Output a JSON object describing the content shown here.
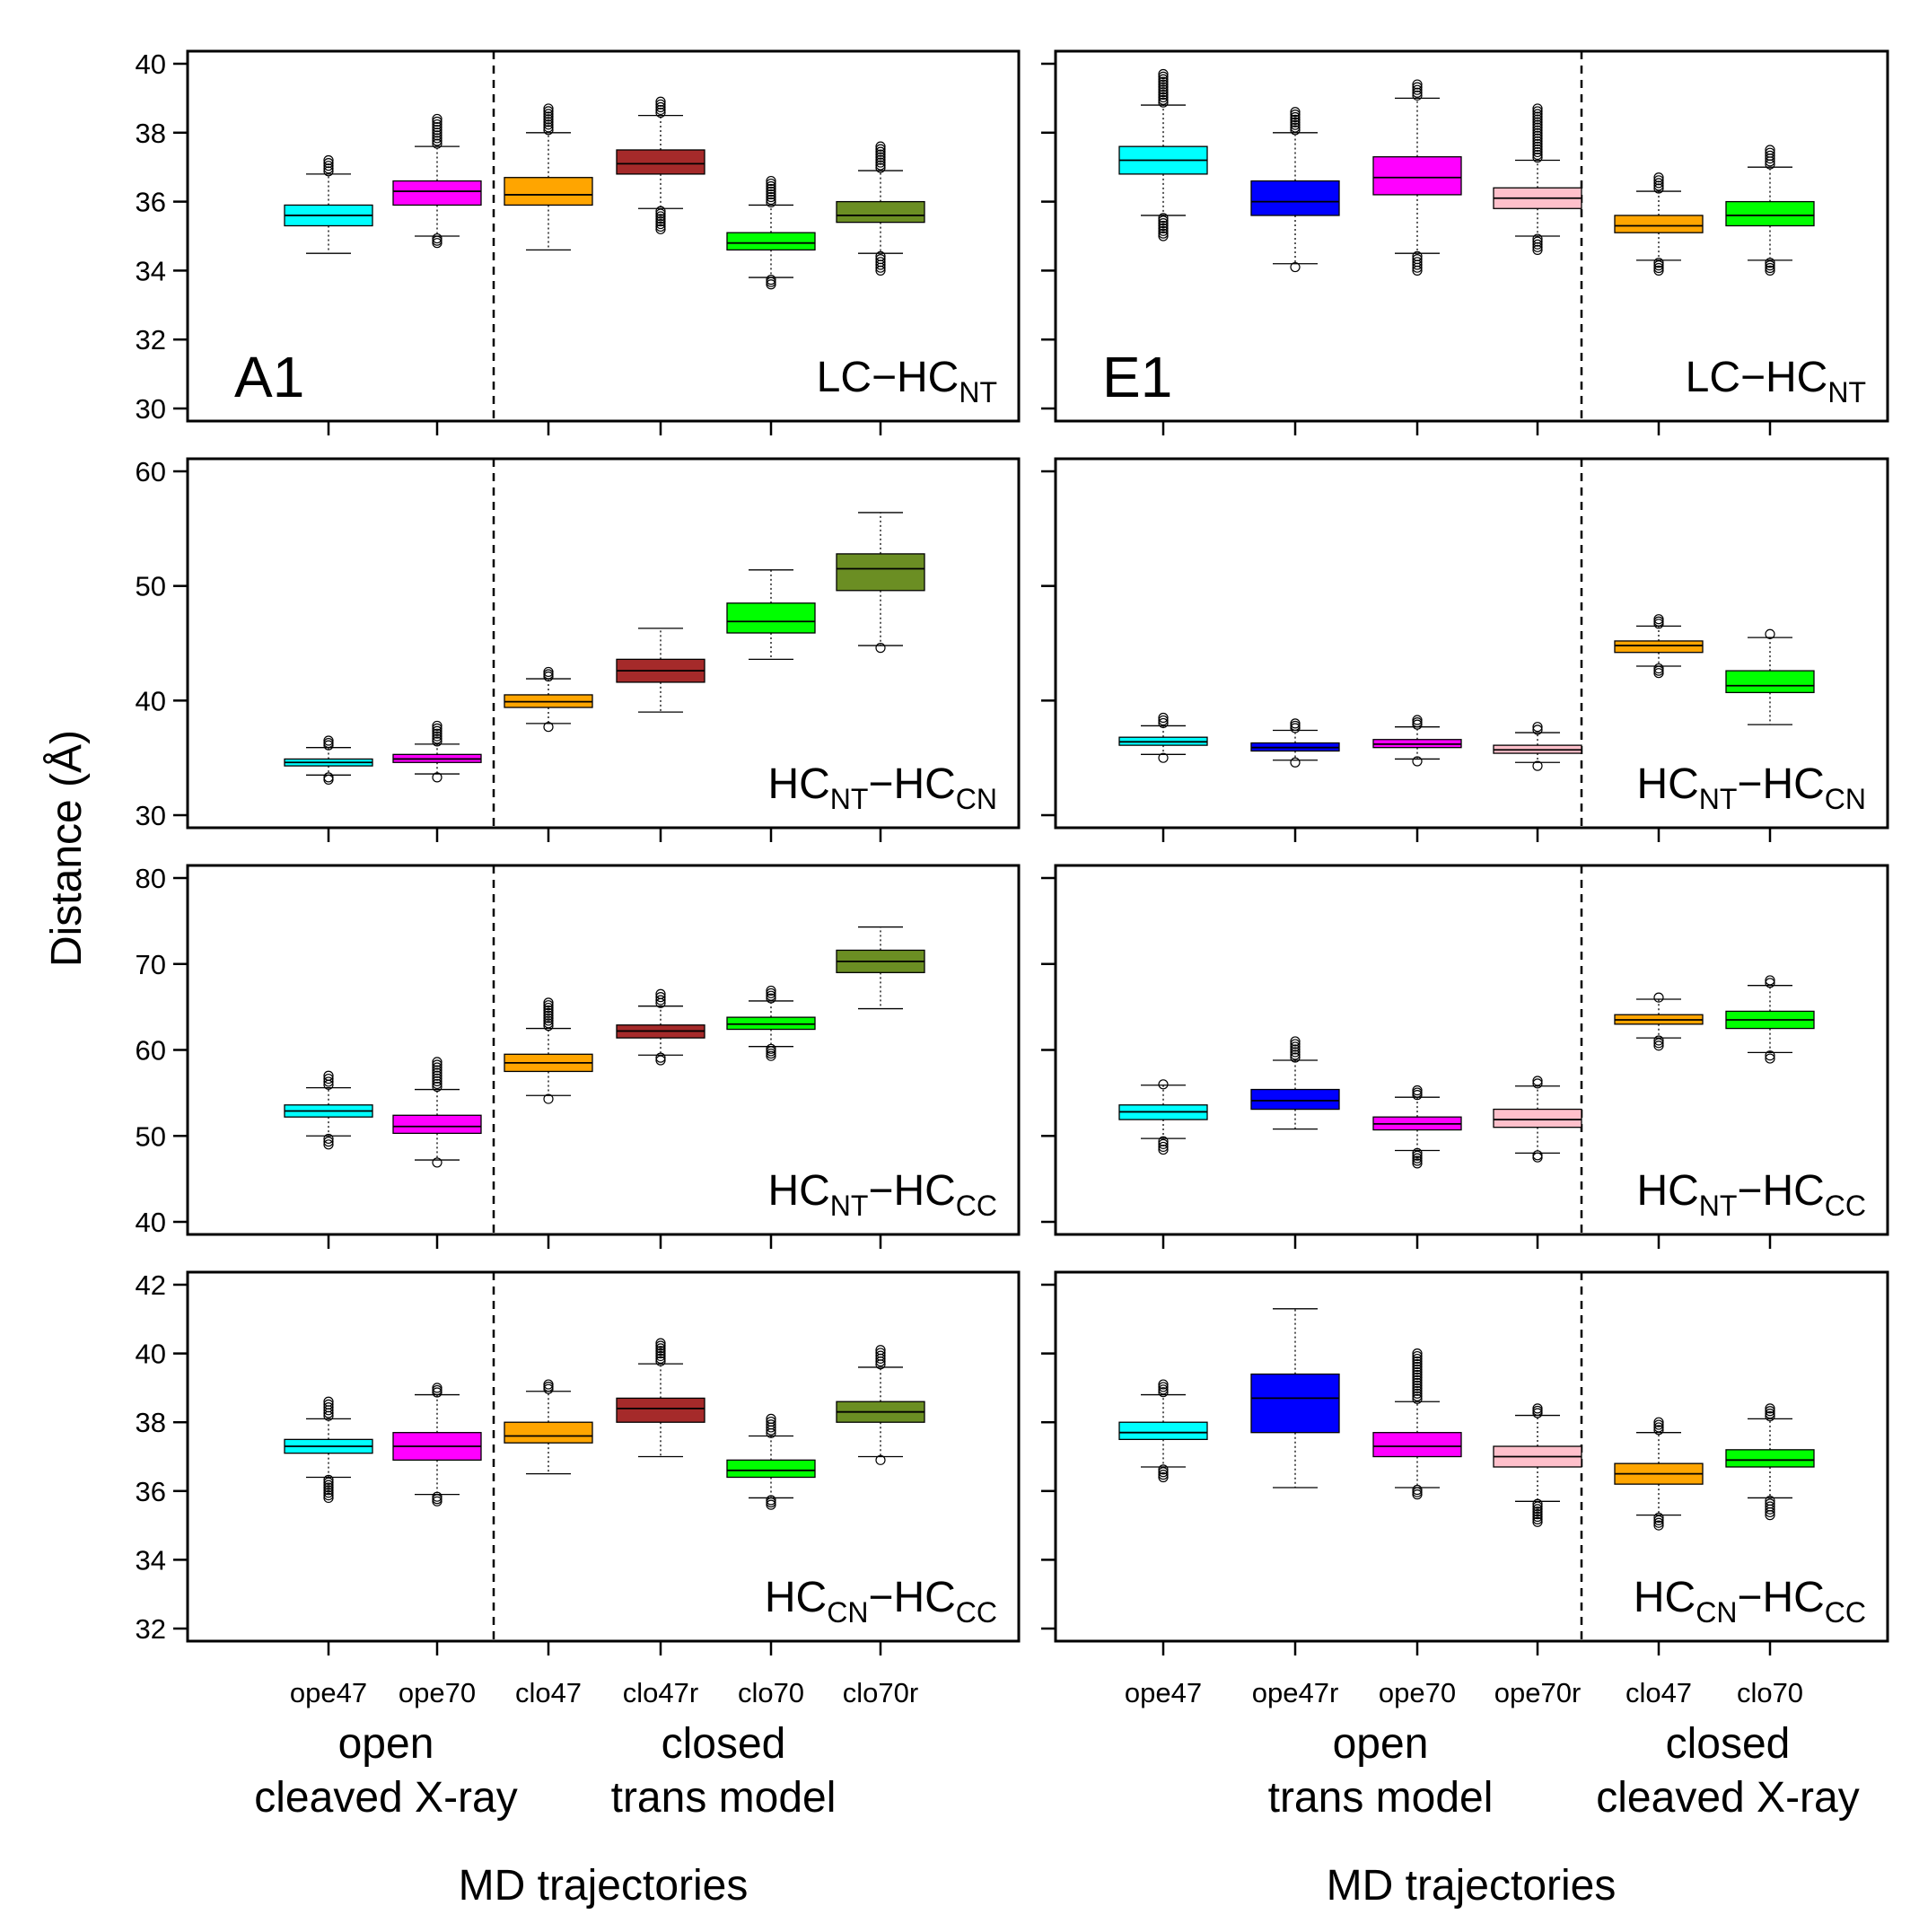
{
  "chart_data": {
    "type": "boxplot",
    "ylabel": "Distance (Å)",
    "left": {
      "panel_letter": "A1",
      "categories": [
        "ope47",
        "ope70",
        "clo47",
        "clo47r",
        "clo70",
        "clo70r"
      ],
      "groups": [
        {
          "title": "open",
          "subtitle": "cleaved X-ray"
        },
        {
          "title": "closed",
          "subtitle": "trans model"
        }
      ],
      "xlabel": "MD trajectories",
      "colors": [
        "#00ffff",
        "#ff00ff",
        "#ffa500",
        "#a52a2a",
        "#00ff00",
        "#6b8e23"
      ],
      "rows": [
        {
          "label": {
            "a": "LC",
            "b": "HC",
            "b_sub": "NT"
          },
          "ylim": [
            30,
            40
          ],
          "ticks": [
            30,
            32,
            34,
            36,
            38,
            40
          ],
          "boxes": [
            {
              "q1": 35.3,
              "median": 35.6,
              "q3": 35.9,
              "wlo": 34.5,
              "whi": 36.8,
              "olo": 34.5,
              "ohi": 37.2
            },
            {
              "q1": 35.9,
              "median": 36.3,
              "q3": 36.6,
              "wlo": 35.0,
              "whi": 37.6,
              "olo": 34.8,
              "ohi": 38.4
            },
            {
              "q1": 35.9,
              "median": 36.2,
              "q3": 36.7,
              "wlo": 34.6,
              "whi": 38.0,
              "olo": null,
              "ohi": 38.7
            },
            {
              "q1": 36.8,
              "median": 37.1,
              "q3": 37.5,
              "wlo": 35.8,
              "whi": 38.5,
              "olo": 35.2,
              "ohi": 38.9
            },
            {
              "q1": 34.6,
              "median": 34.8,
              "q3": 35.1,
              "wlo": 33.8,
              "whi": 35.9,
              "olo": 33.6,
              "ohi": 36.6
            },
            {
              "q1": 35.4,
              "median": 35.6,
              "q3": 36.0,
              "wlo": 34.5,
              "whi": 36.9,
              "olo": 34.0,
              "ohi": 37.6
            }
          ]
        },
        {
          "label": {
            "a": "HC",
            "a_sub": "NT",
            "b": "HC",
            "b_sub": "CN"
          },
          "ylim": [
            30,
            60
          ],
          "ticks": [
            30,
            40,
            50,
            60
          ],
          "boxes": [
            {
              "q1": 34.3,
              "median": 34.6,
              "q3": 34.9,
              "wlo": 33.5,
              "whi": 35.9,
              "olo": 33.1,
              "ohi": 36.5
            },
            {
              "q1": 34.6,
              "median": 34.9,
              "q3": 35.3,
              "wlo": 33.6,
              "whi": 36.2,
              "olo": 33.3,
              "ohi": 37.8
            },
            {
              "q1": 39.4,
              "median": 39.9,
              "q3": 40.5,
              "wlo": 38.0,
              "whi": 41.9,
              "olo": 37.7,
              "ohi": 42.5
            },
            {
              "q1": 41.6,
              "median": 42.6,
              "q3": 43.6,
              "wlo": 39.0,
              "whi": 46.3,
              "olo": null,
              "ohi": null
            },
            {
              "q1": 45.9,
              "median": 46.9,
              "q3": 48.5,
              "wlo": 43.6,
              "whi": 51.4,
              "olo": null,
              "ohi": null
            },
            {
              "q1": 49.6,
              "median": 51.5,
              "q3": 52.8,
              "wlo": 44.8,
              "whi": 56.4,
              "olo": 44.6,
              "ohi": null
            }
          ]
        },
        {
          "label": {
            "a": "HC",
            "a_sub": "NT",
            "b": "HC",
            "b_sub": "CC"
          },
          "ylim": [
            40,
            80
          ],
          "ticks": [
            40,
            50,
            60,
            70,
            80
          ],
          "boxes": [
            {
              "q1": 52.2,
              "median": 52.9,
              "q3": 53.6,
              "wlo": 50.0,
              "whi": 55.6,
              "olo": 49.0,
              "ohi": 57.0
            },
            {
              "q1": 50.3,
              "median": 51.1,
              "q3": 52.4,
              "wlo": 47.2,
              "whi": 55.4,
              "olo": 46.9,
              "ohi": 58.6
            },
            {
              "q1": 57.5,
              "median": 58.5,
              "q3": 59.5,
              "wlo": 54.7,
              "whi": 62.5,
              "olo": 54.3,
              "ohi": 65.5
            },
            {
              "q1": 61.4,
              "median": 62.2,
              "q3": 62.9,
              "wlo": 59.4,
              "whi": 65.1,
              "olo": 58.8,
              "ohi": 66.5
            },
            {
              "q1": 62.4,
              "median": 63.0,
              "q3": 63.8,
              "wlo": 60.4,
              "whi": 65.7,
              "olo": 59.3,
              "ohi": 66.9
            },
            {
              "q1": 69.0,
              "median": 70.3,
              "q3": 71.6,
              "wlo": 64.8,
              "whi": 74.3,
              "olo": null,
              "ohi": null
            }
          ]
        },
        {
          "label": {
            "a": "HC",
            "a_sub": "CN",
            "b": "HC",
            "b_sub": "CC"
          },
          "ylim": [
            32,
            42
          ],
          "ticks": [
            32,
            34,
            36,
            38,
            40,
            42
          ],
          "boxes": [
            {
              "q1": 37.1,
              "median": 37.3,
              "q3": 37.5,
              "wlo": 36.4,
              "whi": 38.1,
              "olo": 35.8,
              "ohi": 38.6
            },
            {
              "q1": 36.9,
              "median": 37.3,
              "q3": 37.7,
              "wlo": 35.9,
              "whi": 38.8,
              "olo": 35.7,
              "ohi": 39.0
            },
            {
              "q1": 37.4,
              "median": 37.6,
              "q3": 38.0,
              "wlo": 36.5,
              "whi": 38.9,
              "olo": null,
              "ohi": 39.1
            },
            {
              "q1": 38.0,
              "median": 38.4,
              "q3": 38.7,
              "wlo": 37.0,
              "whi": 39.7,
              "olo": 37.0,
              "ohi": 40.3
            },
            {
              "q1": 36.4,
              "median": 36.6,
              "q3": 36.9,
              "wlo": 35.8,
              "whi": 37.6,
              "olo": 35.6,
              "ohi": 38.1
            },
            {
              "q1": 38.0,
              "median": 38.3,
              "q3": 38.6,
              "wlo": 37.0,
              "whi": 39.6,
              "olo": 36.9,
              "ohi": 40.1
            }
          ]
        }
      ]
    },
    "right": {
      "panel_letter": "E1",
      "categories": [
        "ope47",
        "ope47r",
        "ope70",
        "ope70r",
        "clo47",
        "clo70"
      ],
      "groups": [
        {
          "title": "open",
          "subtitle": "trans model"
        },
        {
          "title": "closed",
          "subtitle": "cleaved X-ray"
        }
      ],
      "xlabel": "MD trajectories",
      "colors": [
        "#00ffff",
        "#0000ff",
        "#ff00ff",
        "#ffc0cb",
        "#ffa500",
        "#00ff00"
      ],
      "rows": [
        {
          "label": {
            "a": "LC",
            "b": "HC",
            "b_sub": "NT"
          },
          "ylim": [
            30,
            40
          ],
          "ticks": [
            30,
            32,
            34,
            36,
            38,
            40
          ],
          "boxes": [
            {
              "q1": 36.8,
              "median": 37.2,
              "q3": 37.6,
              "wlo": 35.6,
              "whi": 38.8,
              "olo": 35.0,
              "ohi": 39.7
            },
            {
              "q1": 35.6,
              "median": 36.0,
              "q3": 36.6,
              "wlo": 34.2,
              "whi": 38.0,
              "olo": 34.1,
              "ohi": 38.6
            },
            {
              "q1": 36.2,
              "median": 36.7,
              "q3": 37.3,
              "wlo": 34.5,
              "whi": 39.0,
              "olo": 34.0,
              "ohi": 39.4
            },
            {
              "q1": 35.8,
              "median": 36.1,
              "q3": 36.4,
              "wlo": 35.0,
              "whi": 37.2,
              "olo": 34.6,
              "ohi": 38.7
            },
            {
              "q1": 35.1,
              "median": 35.3,
              "q3": 35.6,
              "wlo": 34.3,
              "whi": 36.3,
              "olo": 34.0,
              "ohi": 36.7
            },
            {
              "q1": 35.3,
              "median": 35.6,
              "q3": 36.0,
              "wlo": 34.3,
              "whi": 37.0,
              "olo": 34.0,
              "ohi": 37.5
            }
          ]
        },
        {
          "label": {
            "a": "HC",
            "a_sub": "NT",
            "b": "HC",
            "b_sub": "CN"
          },
          "ylim": [
            30,
            60
          ],
          "ticks": [
            30,
            40,
            50,
            60
          ],
          "boxes": [
            {
              "q1": 36.1,
              "median": 36.4,
              "q3": 36.8,
              "wlo": 35.3,
              "whi": 37.8,
              "olo": 35.0,
              "ohi": 38.5
            },
            {
              "q1": 35.6,
              "median": 35.9,
              "q3": 36.3,
              "wlo": 34.8,
              "whi": 37.4,
              "olo": 34.6,
              "ohi": 38.0
            },
            {
              "q1": 35.9,
              "median": 36.2,
              "q3": 36.6,
              "wlo": 34.9,
              "whi": 37.7,
              "olo": 34.7,
              "ohi": 38.3
            },
            {
              "q1": 35.4,
              "median": 35.7,
              "q3": 36.1,
              "wlo": 34.6,
              "whi": 37.2,
              "olo": 34.3,
              "ohi": 37.7
            },
            {
              "q1": 44.2,
              "median": 44.8,
              "q3": 45.2,
              "wlo": 43.0,
              "whi": 46.5,
              "olo": 42.4,
              "ohi": 47.1
            },
            {
              "q1": 40.7,
              "median": 41.3,
              "q3": 42.6,
              "wlo": 37.9,
              "whi": 45.5,
              "olo": null,
              "ohi": 45.8
            }
          ]
        },
        {
          "label": {
            "a": "HC",
            "a_sub": "NT",
            "b": "HC",
            "b_sub": "CC"
          },
          "ylim": [
            40,
            80
          ],
          "ticks": [
            40,
            50,
            60,
            70,
            80
          ],
          "boxes": [
            {
              "q1": 51.9,
              "median": 52.8,
              "q3": 53.6,
              "wlo": 49.7,
              "whi": 55.9,
              "olo": 48.4,
              "ohi": 56.0
            },
            {
              "q1": 53.1,
              "median": 54.1,
              "q3": 55.4,
              "wlo": 50.8,
              "whi": 58.8,
              "olo": null,
              "ohi": 61.0
            },
            {
              "q1": 50.7,
              "median": 51.4,
              "q3": 52.2,
              "wlo": 48.3,
              "whi": 54.5,
              "olo": 46.8,
              "ohi": 55.3
            },
            {
              "q1": 51.0,
              "median": 51.9,
              "q3": 53.1,
              "wlo": 48.0,
              "whi": 55.8,
              "olo": 47.5,
              "ohi": 56.4
            },
            {
              "q1": 63.0,
              "median": 63.5,
              "q3": 64.1,
              "wlo": 61.4,
              "whi": 65.9,
              "olo": 60.5,
              "ohi": 66.1
            },
            {
              "q1": 62.5,
              "median": 63.5,
              "q3": 64.5,
              "wlo": 59.7,
              "whi": 67.5,
              "olo": 59.0,
              "ohi": 68.1
            }
          ]
        },
        {
          "label": {
            "a": "HC",
            "a_sub": "CN",
            "b": "HC",
            "b_sub": "CC"
          },
          "ylim": [
            32,
            42
          ],
          "ticks": [
            32,
            34,
            36,
            38,
            40,
            42
          ],
          "boxes": [
            {
              "q1": 37.5,
              "median": 37.7,
              "q3": 38.0,
              "wlo": 36.7,
              "whi": 38.8,
              "olo": 36.4,
              "ohi": 39.1
            },
            {
              "q1": 37.7,
              "median": 38.7,
              "q3": 39.4,
              "wlo": 36.1,
              "whi": 41.3,
              "olo": null,
              "ohi": null
            },
            {
              "q1": 37.0,
              "median": 37.3,
              "q3": 37.7,
              "wlo": 36.1,
              "whi": 38.6,
              "olo": 35.9,
              "ohi": 40.0
            },
            {
              "q1": 36.7,
              "median": 37.0,
              "q3": 37.3,
              "wlo": 35.7,
              "whi": 38.2,
              "olo": 35.1,
              "ohi": 38.4
            },
            {
              "q1": 36.2,
              "median": 36.5,
              "q3": 36.8,
              "wlo": 35.3,
              "whi": 37.7,
              "olo": 35.0,
              "ohi": 38.0
            },
            {
              "q1": 36.7,
              "median": 36.9,
              "q3": 37.2,
              "wlo": 35.8,
              "whi": 38.1,
              "olo": 35.3,
              "ohi": 38.4
            }
          ]
        }
      ]
    }
  }
}
